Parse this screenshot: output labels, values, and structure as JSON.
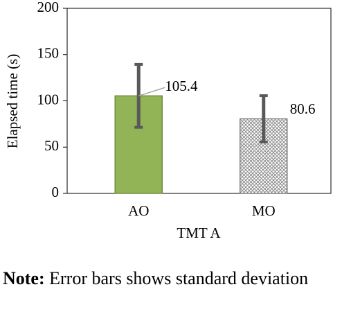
{
  "chart_data": {
    "type": "bar",
    "categories": [
      "AO",
      "MO"
    ],
    "values": [
      105.4,
      80.6
    ],
    "errors": [
      34,
      25
    ],
    "colors": [
      "#92b356",
      "#8c8c8c"
    ],
    "fills": [
      "solid",
      "crosshatch"
    ],
    "xlabel": "TMT A",
    "ylabel": "Elapsed time (s)",
    "ylim": [
      0,
      200
    ],
    "yticks": [
      0,
      50,
      100,
      150,
      200
    ]
  },
  "note": {
    "label": "Note:",
    "text": "Error bars shows standard deviation"
  }
}
